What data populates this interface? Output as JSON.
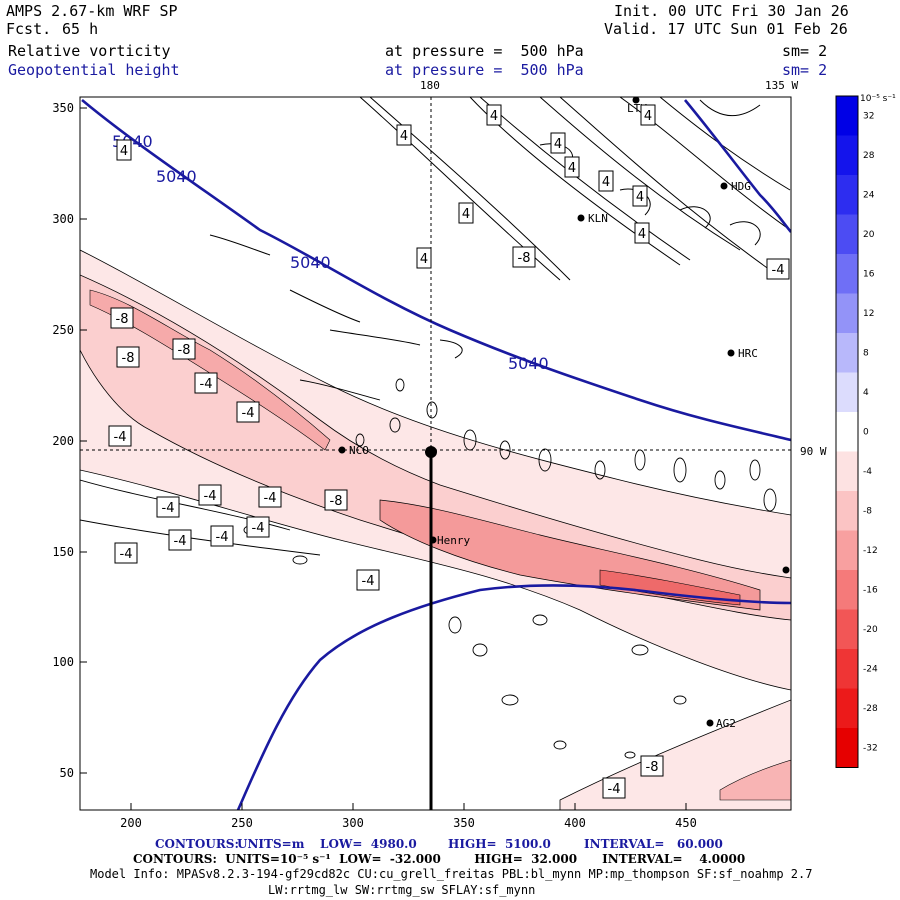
{
  "header": {
    "model": "AMPS 2.67-km WRF SP",
    "fcst_label": "Fcst.",
    "fcst_value": "65 h",
    "init": "Init. 00 UTC Fri 30 Jan 26",
    "valid": "Valid. 17 UTC Sun 01 Feb 26",
    "field1": "Relative vorticity",
    "field1_level": "at pressure =  500 hPa",
    "field1_sm": "sm= 2",
    "field2": "Geopotential height",
    "field2_level": "at pressure =  500 hPa",
    "field2_sm": "sm= 2",
    "lon_top_180": "180",
    "lon_top_135w": "135 W",
    "lon_right_90w": "90 W"
  },
  "axes": {
    "x_ticks": [
      "200",
      "250",
      "300",
      "350",
      "400",
      "450"
    ],
    "y_ticks": [
      "350",
      "300",
      "250",
      "200",
      "150",
      "100",
      "50"
    ],
    "x_range": [
      175,
      495
    ],
    "y_range": [
      35,
      355
    ]
  },
  "colorbar": {
    "units_label": "10⁻⁵ s⁻¹",
    "labels": [
      "32",
      "28",
      "24",
      "20",
      "16",
      "12",
      "8",
      "4",
      "0",
      "-4",
      "-8",
      "-12",
      "-16",
      "-20",
      "-24",
      "-28",
      "-32"
    ],
    "colors": [
      "#0000e6",
      "#1414ec",
      "#2d2df0",
      "#4c4cf3",
      "#6f6ff6",
      "#9393f8",
      "#b8b8fb",
      "#dcdcfd",
      "#ffffff",
      "#fde2e2",
      "#fbc4c4",
      "#f8a0a0",
      "#f57a7a",
      "#f25656",
      "#ef3535",
      "#ec1a1a",
      "#e60000"
    ]
  },
  "stations": [
    "LTY",
    "HDG",
    "KLN",
    "HRC",
    "NCO",
    "Henry",
    "AG2"
  ],
  "contour_labels": {
    "height": [
      "5040",
      "5040",
      "5040",
      "5040"
    ],
    "vorticity": [
      "4",
      "4",
      "4",
      "4",
      "4",
      "4",
      "4",
      "4",
      "4",
      "4",
      "4",
      "-8",
      "-4",
      "-8",
      "-8",
      "-8",
      "-4",
      "-4",
      "-4",
      "-8",
      "-4",
      "-4",
      "-4",
      "-4",
      "-4",
      "-4",
      "-4",
      "-4",
      "-4",
      "-8"
    ]
  },
  "footer": {
    "line1_contours": "CONTOURS:",
    "line1_units": "UNITS=m",
    "line1_low": "LOW=  4980.0",
    "line1_high": "HIGH=  5100.0",
    "line1_interval": "INTERVAL=   60.000",
    "line2": "CONTOURS:  UNITS=10⁻⁵ s⁻¹  LOW=  -32.000        HIGH=  32.000      INTERVAL=    4.0000",
    "line3": "Model Info: MPASv8.2.3-194-gf29cd82c CU:cu_grell_freitas PBL:bl_mynn MP:mp_thompson SF:sf_noahmp 2.7",
    "line4": "LW:rrtmg_lw SW:rrtmg_sw SFLAY:sf_mynn"
  }
}
